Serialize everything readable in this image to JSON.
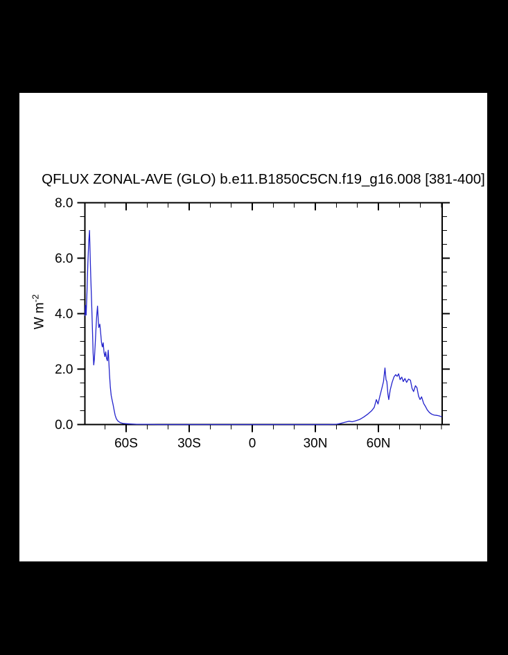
{
  "window": {
    "background_color": "#000000",
    "page_color": "#ffffff"
  },
  "chart_data": {
    "type": "line",
    "title": "QFLUX ZONAL-AVE (GLO) b.e11.B1850C5CN.f19_g16.008 [381-400]",
    "ylabel": {
      "prefix": "W m",
      "exponent": "-2"
    },
    "xlabel": "",
    "xlim": [
      -79.6,
      90.3
    ],
    "ylim": [
      0,
      8
    ],
    "grid": false,
    "legend": "none",
    "line_color": "#2222cc",
    "frame_color": "#000000",
    "x_ticks_major": [
      {
        "value": -60,
        "label": "60S"
      },
      {
        "value": -30,
        "label": "30S"
      },
      {
        "value": 0,
        "label": "0"
      },
      {
        "value": 30,
        "label": "30N"
      },
      {
        "value": 60,
        "label": "60N"
      }
    ],
    "x_ticks_minor": [
      -70,
      -50,
      -40,
      -20,
      -10,
      10,
      20,
      40,
      50,
      70,
      80,
      90
    ],
    "y_ticks_major": [
      {
        "value": 0,
        "label": "0.0"
      },
      {
        "value": 2,
        "label": "2.0"
      },
      {
        "value": 4,
        "label": "4.0"
      },
      {
        "value": 6,
        "label": "6.0"
      },
      {
        "value": 8,
        "label": "8.0"
      }
    ],
    "y_ticks_minor": [
      0.5,
      1.0,
      1.5,
      2.5,
      3.0,
      3.5,
      4.5,
      5.0,
      5.5,
      6.5,
      7.0,
      7.5
    ],
    "series": [
      {
        "name": "QFLUX zonal average",
        "points": [
          [
            -79.6,
            3.93
          ],
          [
            -79.3,
            4.3
          ],
          [
            -79.0,
            3.95
          ],
          [
            -78.6,
            4.8
          ],
          [
            -78.2,
            5.8
          ],
          [
            -77.8,
            6.55
          ],
          [
            -77.4,
            7.0
          ],
          [
            -77.1,
            6.1
          ],
          [
            -76.8,
            5.3
          ],
          [
            -76.4,
            4.4
          ],
          [
            -76.0,
            3.4
          ],
          [
            -75.7,
            2.6
          ],
          [
            -75.4,
            2.15
          ],
          [
            -75.1,
            2.35
          ],
          [
            -74.7,
            2.9
          ],
          [
            -74.3,
            3.5
          ],
          [
            -74.0,
            3.9
          ],
          [
            -73.6,
            4.27
          ],
          [
            -73.3,
            3.85
          ],
          [
            -73.0,
            3.5
          ],
          [
            -72.5,
            3.62
          ],
          [
            -72.1,
            3.3
          ],
          [
            -71.7,
            2.95
          ],
          [
            -71.3,
            2.8
          ],
          [
            -70.9,
            2.95
          ],
          [
            -70.5,
            2.6
          ],
          [
            -70.1,
            2.45
          ],
          [
            -69.7,
            2.62
          ],
          [
            -69.3,
            2.38
          ],
          [
            -68.9,
            2.3
          ],
          [
            -68.5,
            2.68
          ],
          [
            -68.2,
            2.25
          ],
          [
            -67.9,
            1.8
          ],
          [
            -67.5,
            1.35
          ],
          [
            -67.1,
            1.05
          ],
          [
            -66.7,
            0.9
          ],
          [
            -66.2,
            0.72
          ],
          [
            -65.7,
            0.52
          ],
          [
            -65.2,
            0.33
          ],
          [
            -64.6,
            0.2
          ],
          [
            -63.8,
            0.12
          ],
          [
            -62.8,
            0.07
          ],
          [
            -61.5,
            0.04
          ],
          [
            -60.0,
            0.03
          ],
          [
            -58.0,
            0.02
          ],
          [
            -55.0,
            0.01
          ],
          [
            -50.0,
            0.01
          ],
          [
            -45.0,
            0.0
          ],
          [
            -40.0,
            0.0
          ],
          [
            -30.0,
            0.0
          ],
          [
            -20.0,
            0.0
          ],
          [
            -10.0,
            0.0
          ],
          [
            0.0,
            0.0
          ],
          [
            10.0,
            0.0
          ],
          [
            20.0,
            0.0
          ],
          [
            30.0,
            0.0
          ],
          [
            36.0,
            0.0
          ],
          [
            40.0,
            0.01
          ],
          [
            42.0,
            0.04
          ],
          [
            44.0,
            0.08
          ],
          [
            46.0,
            0.12
          ],
          [
            47.5,
            0.1
          ],
          [
            49.0,
            0.13
          ],
          [
            51.0,
            0.18
          ],
          [
            53.0,
            0.27
          ],
          [
            55.0,
            0.38
          ],
          [
            56.8,
            0.5
          ],
          [
            58.0,
            0.62
          ],
          [
            59.0,
            0.9
          ],
          [
            59.8,
            0.74
          ],
          [
            60.6,
            1.0
          ],
          [
            61.6,
            1.3
          ],
          [
            62.4,
            1.55
          ],
          [
            63.1,
            2.04
          ],
          [
            63.6,
            1.62
          ],
          [
            64.0,
            1.55
          ],
          [
            64.5,
            1.1
          ],
          [
            64.9,
            0.9
          ],
          [
            65.6,
            1.25
          ],
          [
            66.5,
            1.52
          ],
          [
            67.4,
            1.72
          ],
          [
            68.2,
            1.8
          ],
          [
            68.9,
            1.74
          ],
          [
            69.6,
            1.83
          ],
          [
            70.3,
            1.62
          ],
          [
            71.1,
            1.71
          ],
          [
            71.8,
            1.55
          ],
          [
            72.6,
            1.66
          ],
          [
            73.4,
            1.52
          ],
          [
            74.3,
            1.64
          ],
          [
            75.2,
            1.6
          ],
          [
            76.0,
            1.3
          ],
          [
            76.7,
            1.19
          ],
          [
            77.6,
            1.4
          ],
          [
            78.3,
            1.33
          ],
          [
            79.1,
            1.02
          ],
          [
            79.8,
            0.9
          ],
          [
            80.5,
            1.0
          ],
          [
            81.5,
            0.76
          ],
          [
            82.3,
            0.66
          ],
          [
            83.2,
            0.53
          ],
          [
            84.3,
            0.43
          ],
          [
            85.4,
            0.37
          ],
          [
            86.5,
            0.34
          ],
          [
            87.8,
            0.33
          ],
          [
            89.0,
            0.31
          ],
          [
            90.0,
            0.28
          ]
        ]
      }
    ]
  }
}
